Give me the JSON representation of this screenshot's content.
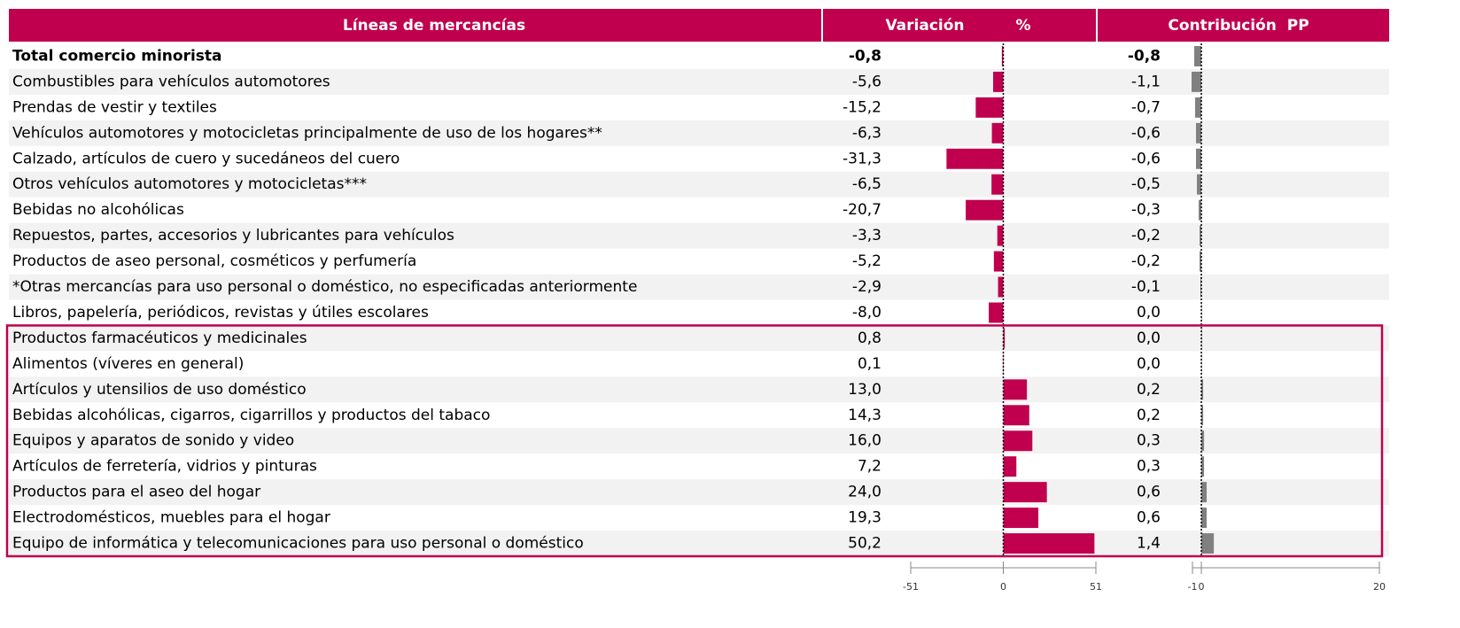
{
  "chart_data": {
    "type": "bar",
    "headers": [
      "Líneas de mercancías",
      "Variación",
      "%",
      "Contribución  PP"
    ],
    "header_color": "#c0004e",
    "categories": [
      "Total comercio minorista",
      "Combustibles para vehículos automotores",
      "Prendas de vestir y textiles",
      "Vehículos automotores y motocicletas principalmente de uso de los hogares**",
      "Calzado, artículos de cuero y sucedáneos del cuero",
      "Otros vehículos automotores y motocicletas***",
      "Bebidas no alcohólicas",
      "Repuestos, partes, accesorios y lubricantes para vehículos",
      "Productos de aseo personal, cosméticos y perfumería",
      "*Otras mercancías para uso personal o doméstico, no especificadas anteriormente",
      "Libros, papelería, periódicos, revistas y útiles escolares",
      "Productos farmacéuticos y medicinales",
      "Alimentos (víveres en general)",
      "Artículos y utensilios de uso doméstico",
      "Bebidas alcohólicas, cigarros, cigarrillos y productos del tabaco",
      "Equipos y aparatos de sonido y video",
      "Artículos de ferretería, vidrios y pinturas",
      "Productos para el aseo del hogar",
      "Electrodomésticos, muebles para el hogar",
      "Equipo de informática y telecomunicaciones para uso personal o doméstico"
    ],
    "variation": {
      "color": "#c0004e",
      "xlim": [
        -51,
        51
      ],
      "xticks": [
        -51,
        0,
        51
      ],
      "values": [
        -0.8,
        -5.6,
        -15.2,
        -6.3,
        -31.3,
        -6.5,
        -20.7,
        -3.3,
        -5.2,
        -2.9,
        -8.0,
        0.8,
        0.1,
        13.0,
        14.3,
        16.0,
        7.2,
        24.0,
        19.3,
        50.2
      ],
      "value_labels": [
        "-0,8",
        "-5,6",
        "-15,2",
        "-6,3",
        "-31,3",
        "-6,5",
        "-20,7",
        "-3,3",
        "-5,2",
        "-2,9",
        "-8,0",
        "0,8",
        "0,1",
        "13,0",
        "14,3",
        "16,0",
        "7,2",
        "24,0",
        "19,3",
        "50,2"
      ]
    },
    "contribution": {
      "color": "#808080",
      "xlim": [
        -1,
        20
      ],
      "xticks": [
        -1,
        0,
        20
      ],
      "values": [
        -0.8,
        -1.1,
        -0.7,
        -0.6,
        -0.6,
        -0.5,
        -0.3,
        -0.2,
        -0.2,
        -0.1,
        0.0,
        0.0,
        0.0,
        0.2,
        0.2,
        0.3,
        0.3,
        0.6,
        0.6,
        1.4
      ],
      "value_labels": [
        "-0,8",
        "-1,1",
        "-0,7",
        "-0,6",
        "-0,6",
        "-0,5",
        "-0,3",
        "-0,2",
        "-0,2",
        "-0,1",
        "0,0",
        "0,0",
        "0,0",
        "0,2",
        "0,2",
        "0,3",
        "0,3",
        "0,6",
        "0,6",
        "1,4"
      ]
    },
    "highlight_from": 11
  }
}
